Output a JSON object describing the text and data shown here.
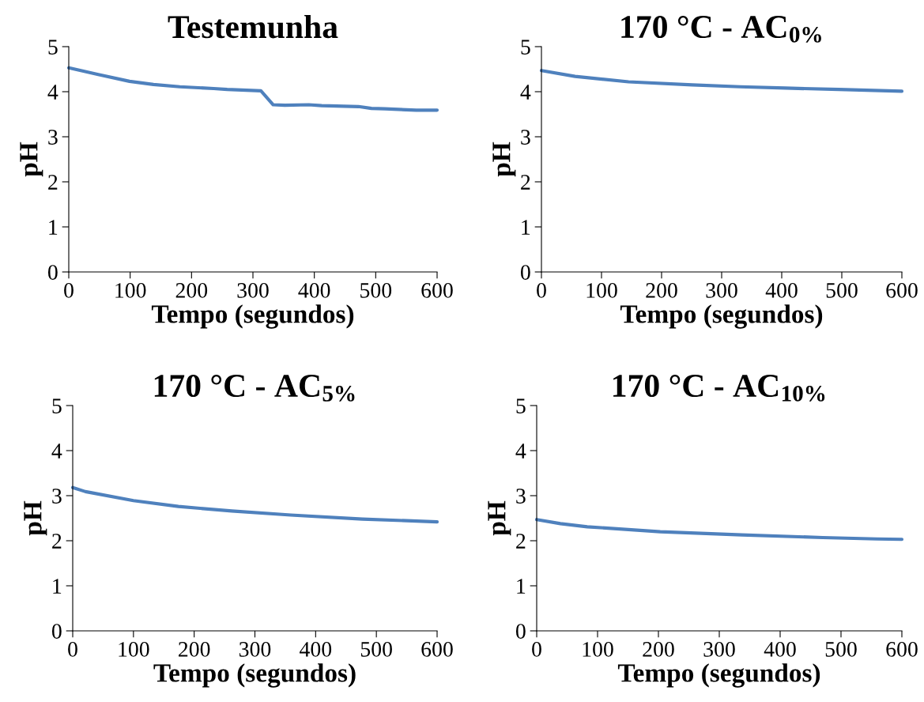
{
  "chart_data": [
    {
      "type": "line",
      "title": "Testemunha",
      "xlabel": "Tempo (segundos)",
      "ylabel": "pH",
      "xlim": [
        0,
        600
      ],
      "xticks": [
        0,
        100,
        200,
        300,
        400,
        500,
        600
      ],
      "ylim": [
        0,
        5
      ],
      "yticks": [
        0,
        1,
        2,
        3,
        4,
        5
      ],
      "grid": false,
      "series": [
        {
          "color": "#4f81bd",
          "x": [
            0,
            48,
            99,
            138,
            181,
            236,
            258,
            313,
            333,
            352,
            391,
            412,
            472,
            493,
            515,
            566,
            600
          ],
          "values": [
            4.53,
            4.38,
            4.23,
            4.16,
            4.11,
            4.07,
            4.05,
            4.02,
            3.71,
            3.7,
            3.71,
            3.69,
            3.67,
            3.63,
            3.62,
            3.59,
            3.59
          ]
        }
      ]
    },
    {
      "type": "line",
      "title": "170 °C - AC$_{0%}$",
      "xlabel": "Tempo (segundos)",
      "ylabel": "pH",
      "xlim": [
        0,
        600
      ],
      "xticks": [
        0,
        100,
        200,
        300,
        400,
        500,
        600
      ],
      "ylim": [
        0,
        5
      ],
      "yticks": [
        0,
        1,
        2,
        3,
        4,
        5
      ],
      "grid": false,
      "series": [
        {
          "color": "#4f81bd",
          "x": [
            0,
            56,
            145,
            251,
            331,
            406,
            495,
            600
          ],
          "values": [
            4.47,
            4.34,
            4.22,
            4.15,
            4.11,
            4.08,
            4.05,
            4.01
          ]
        }
      ]
    },
    {
      "type": "line",
      "title": "170 °C - AC$_{5%}$",
      "xlabel": "Tempo (segundos)",
      "ylabel": "pH",
      "xlim": [
        0,
        600
      ],
      "xticks": [
        0,
        100,
        200,
        300,
        400,
        500,
        600
      ],
      "ylim": [
        0,
        5
      ],
      "yticks": [
        0,
        1,
        2,
        3,
        4,
        5
      ],
      "grid": false,
      "series": [
        {
          "color": "#4f81bd",
          "x": [
            0,
            21,
            100,
            174,
            262,
            359,
            477,
            600
          ],
          "values": [
            3.18,
            3.09,
            2.89,
            2.76,
            2.66,
            2.57,
            2.48,
            2.42
          ]
        }
      ]
    },
    {
      "type": "line",
      "title": "170 °C - AC$_{10%}$",
      "xlabel": "Tempo (segundos)",
      "ylabel": "pH",
      "xlim": [
        0,
        600
      ],
      "xticks": [
        0,
        100,
        200,
        300,
        400,
        500,
        600
      ],
      "ylim": [
        0,
        5
      ],
      "yticks": [
        0,
        1,
        2,
        3,
        4,
        5
      ],
      "grid": false,
      "series": [
        {
          "color": "#4f81bd",
          "x": [
            0,
            39,
            83,
            203,
            337,
            470,
            559,
            600
          ],
          "values": [
            2.47,
            2.38,
            2.31,
            2.2,
            2.13,
            2.07,
            2.04,
            2.03
          ]
        }
      ]
    }
  ]
}
